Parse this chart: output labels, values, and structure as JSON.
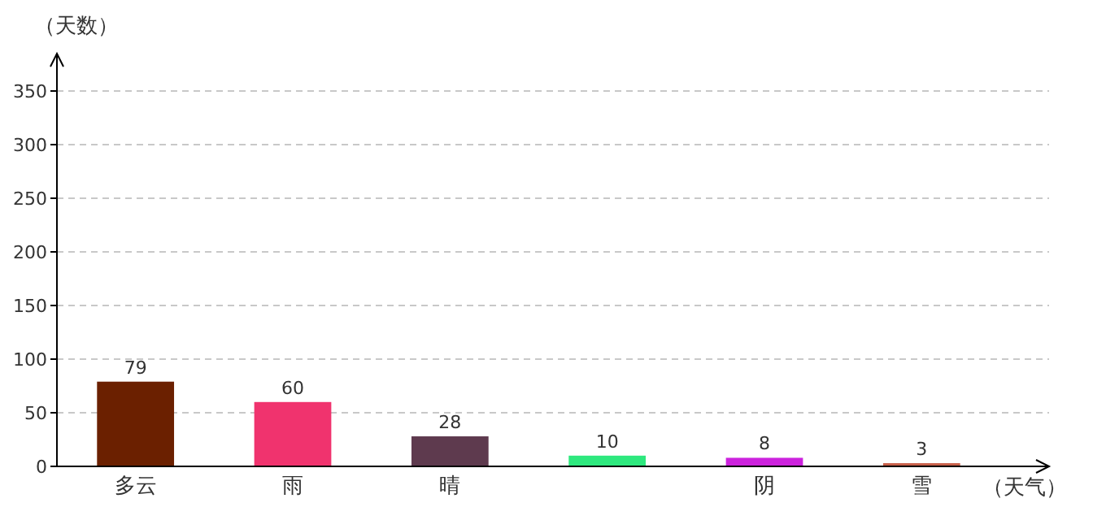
{
  "chart_data": {
    "type": "bar",
    "xlabel": "（天气）",
    "ylabel": "（天数）",
    "categories": [
      "多云",
      "雨",
      "晴",
      null,
      "阴",
      "雪"
    ],
    "values": [
      79,
      60,
      28,
      10,
      8,
      3
    ],
    "colors": [
      "#6b2000",
      "#f0336e",
      "#5e3a4e",
      "#2ee87e",
      "#cc22dd",
      "#c8604a"
    ],
    "ylim": [
      0,
      350
    ],
    "yticks": [
      0,
      50,
      100,
      150,
      200,
      250,
      300,
      350
    ],
    "grid": "y",
    "data_labels": true
  }
}
